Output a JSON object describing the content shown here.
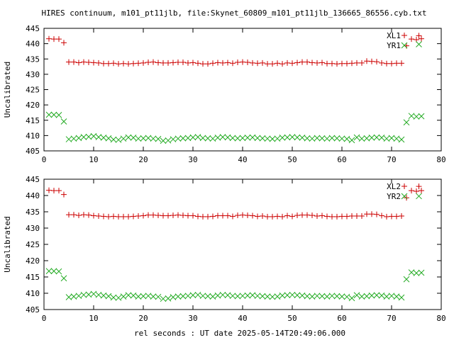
{
  "title": "HIRES continuum, m101_pt11jlb, file:Skynet_60809_m101_pt11jlb_136665_86556.cyb.txt",
  "xlabel": "rel seconds : UT date 2025-05-14T20:49:06.000",
  "colors": {
    "red": "#cc0000",
    "green": "#22aa22"
  },
  "chart_data": [
    {
      "type": "scatter",
      "ylabel": "Uncalibrated",
      "xlim": [
        0,
        80
      ],
      "ylim": [
        405,
        445
      ],
      "xticks": [
        0,
        10,
        20,
        30,
        40,
        50,
        60,
        70,
        80
      ],
      "yticks": [
        405,
        410,
        415,
        420,
        425,
        430,
        435,
        440,
        445
      ],
      "legend_position": "top-right",
      "series": [
        {
          "name": "XL1",
          "marker": "plus",
          "color": "#cc0000",
          "x": [
            1,
            2,
            3,
            4,
            5,
            6,
            7,
            8,
            9,
            10,
            11,
            12,
            13,
            14,
            15,
            16,
            17,
            18,
            19,
            20,
            21,
            22,
            23,
            24,
            25,
            26,
            27,
            28,
            29,
            30,
            31,
            32,
            33,
            34,
            35,
            36,
            37,
            38,
            39,
            40,
            41,
            42,
            43,
            44,
            45,
            46,
            47,
            48,
            49,
            50,
            51,
            52,
            53,
            54,
            55,
            56,
            57,
            58,
            59,
            60,
            61,
            62,
            63,
            64,
            65,
            66,
            67,
            68,
            69,
            70,
            71,
            72,
            73,
            74,
            75,
            75.5,
            76
          ],
          "y": [
            441.6,
            441.5,
            441.5,
            440.3,
            434.0,
            434.0,
            433.8,
            434.0,
            433.9,
            433.8,
            433.7,
            433.5,
            433.5,
            433.6,
            433.4,
            433.5,
            433.4,
            433.5,
            433.6,
            433.7,
            433.9,
            434.0,
            433.8,
            433.7,
            433.7,
            433.8,
            433.9,
            433.9,
            433.7,
            433.8,
            433.6,
            433.4,
            433.4,
            433.6,
            433.8,
            433.7,
            433.8,
            433.6,
            433.9,
            434.0,
            433.9,
            433.7,
            433.6,
            433.7,
            433.4,
            433.4,
            433.6,
            433.4,
            433.7,
            433.6,
            433.8,
            434.0,
            434.0,
            433.8,
            433.7,
            433.8,
            433.5,
            433.5,
            433.4,
            433.5,
            433.5,
            433.6,
            433.7,
            433.7,
            434.3,
            434.2,
            434.1,
            433.7,
            433.5,
            433.5,
            433.6,
            433.6,
            439.3,
            441.5,
            441.3,
            442.6,
            441.6
          ]
        },
        {
          "name": "YR1",
          "marker": "cross",
          "color": "#22aa22",
          "x": [
            1,
            2,
            3,
            4,
            5,
            6,
            7,
            8,
            9,
            10,
            11,
            12,
            13,
            14,
            15,
            16,
            17,
            18,
            19,
            20,
            21,
            22,
            23,
            24,
            25,
            26,
            27,
            28,
            29,
            30,
            31,
            32,
            33,
            34,
            35,
            36,
            37,
            38,
            39,
            40,
            41,
            42,
            43,
            44,
            45,
            46,
            47,
            48,
            49,
            50,
            51,
            52,
            53,
            54,
            55,
            56,
            57,
            58,
            59,
            60,
            61,
            62,
            63,
            64,
            65,
            66,
            67,
            68,
            69,
            70,
            71,
            72,
            73,
            74,
            75,
            76
          ],
          "y": [
            416.8,
            416.8,
            416.7,
            414.6,
            408.8,
            409.0,
            409.2,
            409.5,
            409.6,
            409.8,
            409.5,
            409.3,
            409.1,
            408.7,
            408.6,
            409.0,
            409.4,
            409.3,
            409.0,
            409.1,
            409.2,
            409.0,
            408.9,
            408.3,
            408.4,
            408.8,
            409.0,
            409.1,
            409.2,
            409.4,
            409.5,
            409.2,
            409.1,
            409.0,
            409.3,
            409.5,
            409.4,
            409.2,
            409.1,
            409.2,
            409.3,
            409.4,
            409.2,
            409.1,
            409.0,
            408.9,
            409.0,
            409.3,
            409.4,
            409.5,
            409.4,
            409.3,
            409.1,
            409.0,
            409.2,
            409.1,
            409.0,
            409.2,
            409.1,
            409.0,
            408.9,
            408.5,
            409.4,
            409.0,
            409.1,
            409.3,
            409.4,
            409.3,
            409.0,
            409.2,
            409.0,
            408.7,
            414.3,
            416.4,
            416.2,
            416.3
          ]
        }
      ],
      "extra_points": [
        {
          "series": "YR1",
          "x": 75.5,
          "y": 439.8
        }
      ]
    },
    {
      "type": "scatter",
      "ylabel": "Uncalibrated",
      "xlim": [
        0,
        80
      ],
      "ylim": [
        405,
        445
      ],
      "xticks": [
        0,
        10,
        20,
        30,
        40,
        50,
        60,
        70,
        80
      ],
      "yticks": [
        405,
        410,
        415,
        420,
        425,
        430,
        435,
        440,
        445
      ],
      "legend_position": "top-right",
      "series": [
        {
          "name": "XL2",
          "marker": "plus",
          "color": "#cc0000",
          "x": [
            1,
            2,
            3,
            4,
            5,
            6,
            7,
            8,
            9,
            10,
            11,
            12,
            13,
            14,
            15,
            16,
            17,
            18,
            19,
            20,
            21,
            22,
            23,
            24,
            25,
            26,
            27,
            28,
            29,
            30,
            31,
            32,
            33,
            34,
            35,
            36,
            37,
            38,
            39,
            40,
            41,
            42,
            43,
            44,
            45,
            46,
            47,
            48,
            49,
            50,
            51,
            52,
            53,
            54,
            55,
            56,
            57,
            58,
            59,
            60,
            61,
            62,
            63,
            64,
            65,
            66,
            67,
            68,
            69,
            70,
            71,
            72,
            73,
            74,
            75,
            75.5,
            76
          ],
          "y": [
            441.6,
            441.5,
            441.5,
            440.3,
            434.1,
            434.1,
            433.9,
            434.1,
            434.0,
            433.8,
            433.7,
            433.6,
            433.5,
            433.6,
            433.5,
            433.5,
            433.5,
            433.6,
            433.7,
            433.8,
            434.0,
            434.0,
            433.9,
            433.8,
            433.8,
            433.9,
            434.0,
            433.9,
            433.8,
            433.8,
            433.6,
            433.5,
            433.5,
            433.6,
            433.8,
            433.8,
            433.8,
            433.6,
            433.9,
            434.0,
            433.9,
            433.8,
            433.6,
            433.7,
            433.5,
            433.5,
            433.6,
            433.5,
            433.8,
            433.6,
            433.9,
            434.0,
            434.0,
            433.9,
            433.7,
            433.8,
            433.6,
            433.5,
            433.5,
            433.6,
            433.6,
            433.7,
            433.7,
            433.7,
            434.3,
            434.3,
            434.2,
            433.8,
            433.5,
            433.6,
            433.6,
            433.7,
            439.3,
            441.5,
            441.3,
            442.8,
            441.5
          ]
        },
        {
          "name": "YR2",
          "marker": "cross",
          "color": "#22aa22",
          "x": [
            1,
            2,
            3,
            4,
            5,
            6,
            7,
            8,
            9,
            10,
            11,
            12,
            13,
            14,
            15,
            16,
            17,
            18,
            19,
            20,
            21,
            22,
            23,
            24,
            25,
            26,
            27,
            28,
            29,
            30,
            31,
            32,
            33,
            34,
            35,
            36,
            37,
            38,
            39,
            40,
            41,
            42,
            43,
            44,
            45,
            46,
            47,
            48,
            49,
            50,
            51,
            52,
            53,
            54,
            55,
            56,
            57,
            58,
            59,
            60,
            61,
            62,
            63,
            64,
            65,
            66,
            67,
            68,
            69,
            70,
            71,
            72,
            73,
            74,
            75,
            76
          ],
          "y": [
            416.8,
            416.8,
            416.7,
            414.6,
            408.8,
            409.0,
            409.2,
            409.5,
            409.6,
            409.8,
            409.5,
            409.3,
            409.1,
            408.7,
            408.6,
            409.0,
            409.4,
            409.3,
            409.0,
            409.1,
            409.2,
            409.0,
            408.9,
            408.3,
            408.4,
            408.8,
            409.0,
            409.1,
            409.2,
            409.4,
            409.5,
            409.2,
            409.1,
            409.0,
            409.3,
            409.5,
            409.4,
            409.2,
            409.1,
            409.2,
            409.3,
            409.4,
            409.2,
            409.1,
            409.0,
            408.9,
            409.0,
            409.3,
            409.4,
            409.5,
            409.4,
            409.3,
            409.1,
            409.0,
            409.2,
            409.1,
            409.0,
            409.2,
            409.1,
            409.0,
            408.9,
            408.5,
            409.4,
            409.0,
            409.1,
            409.3,
            409.4,
            409.3,
            409.0,
            409.2,
            409.0,
            408.7,
            414.3,
            416.4,
            416.2,
            416.3
          ]
        }
      ],
      "extra_points": [
        {
          "series": "YR2",
          "x": 75.5,
          "y": 439.8
        }
      ]
    }
  ]
}
